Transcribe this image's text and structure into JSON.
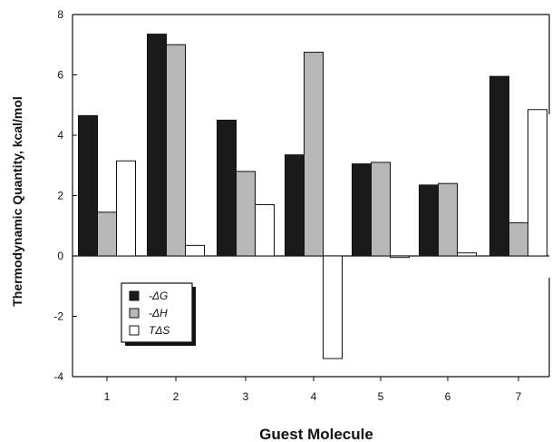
{
  "chart_data": {
    "type": "bar",
    "xlabel": "Guest  Molecule",
    "ylabel": "Thermodynamic Quantity, kcal/mol",
    "ylim": [
      -4,
      8
    ],
    "yticks": [
      -4,
      -2,
      0,
      2,
      4,
      6,
      8
    ],
    "categories": [
      "1",
      "2",
      "3",
      "4",
      "5",
      "6",
      "7"
    ],
    "series": [
      {
        "name": "-ΔG",
        "fill": "#1a1a1a",
        "values": [
          4.65,
          7.35,
          4.5,
          3.35,
          3.05,
          2.35,
          5.95
        ]
      },
      {
        "name": "-ΔH",
        "fill": "#b8b8b8",
        "values": [
          1.45,
          7.0,
          2.8,
          6.75,
          3.1,
          2.4,
          1.1
        ]
      },
      {
        "name": "TΔS",
        "fill": "#ffffff",
        "values": [
          3.15,
          0.35,
          1.7,
          -3.4,
          -0.05,
          0.1,
          4.85
        ]
      }
    ],
    "legend_position": "lower-left",
    "grid": false
  }
}
